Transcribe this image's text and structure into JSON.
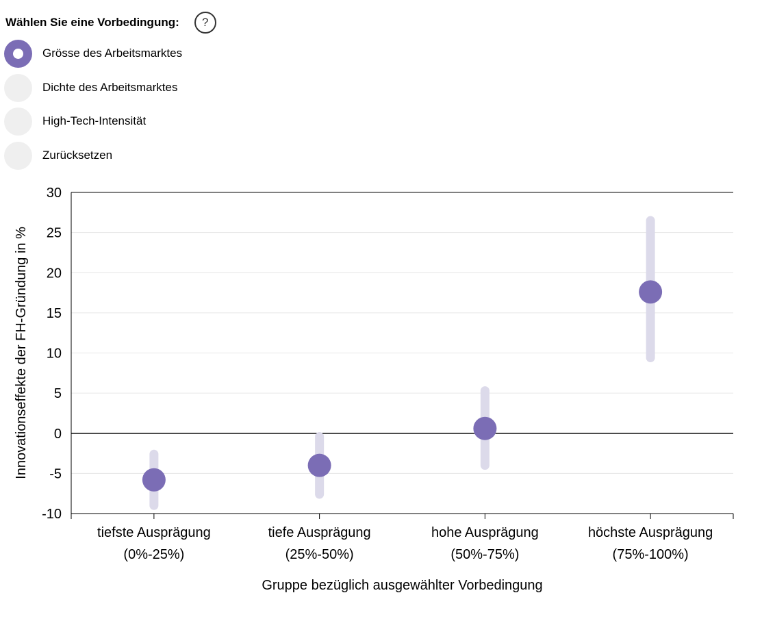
{
  "controls": {
    "prompt": "Wählen Sie eine Vorbedingung:",
    "help_label": "?",
    "options": [
      {
        "label": "Grösse des Arbeitsmarktes",
        "selected": true
      },
      {
        "label": "Dichte des Arbeitsmarktes",
        "selected": false
      },
      {
        "label": "High-Tech-Intensität",
        "selected": false
      },
      {
        "label": "Zurücksetzen",
        "selected": false
      }
    ]
  },
  "colors": {
    "accent": "#7b6db5",
    "interval": "#dcdaea",
    "radio_inactive": "#efefef",
    "grid": "#e6e6e6"
  },
  "chart_data": {
    "type": "scatter",
    "title": "",
    "xlabel": "Gruppe bezüglich ausgewählter Vorbedingung",
    "ylabel": "Innovationseffekte der FH-Gründung in %",
    "ylim": [
      -10,
      30
    ],
    "yticks": [
      30,
      25,
      20,
      15,
      10,
      5,
      0,
      -5,
      -10
    ],
    "ytick_labels": [
      "30",
      "25",
      "20",
      "15",
      "10",
      "5",
      "0",
      "-5",
      "-10"
    ],
    "grid": true,
    "categories": [
      {
        "line1": "tiefste Ausprägung",
        "line2": "(0%-25%)"
      },
      {
        "line1": "tiefe Ausprägung",
        "line2": "(25%-50%)"
      },
      {
        "line1": "hohe Ausprägung",
        "line2": "(50%-75%)"
      },
      {
        "line1": "höchste Ausprägung",
        "line2": "(75%-100%)"
      }
    ],
    "values": [
      -5.8,
      -4.0,
      0.6,
      17.6
    ],
    "lower": [
      -9.0,
      -7.6,
      -4.0,
      9.4
    ],
    "upper": [
      -2.6,
      -0.4,
      5.3,
      26.5
    ]
  }
}
